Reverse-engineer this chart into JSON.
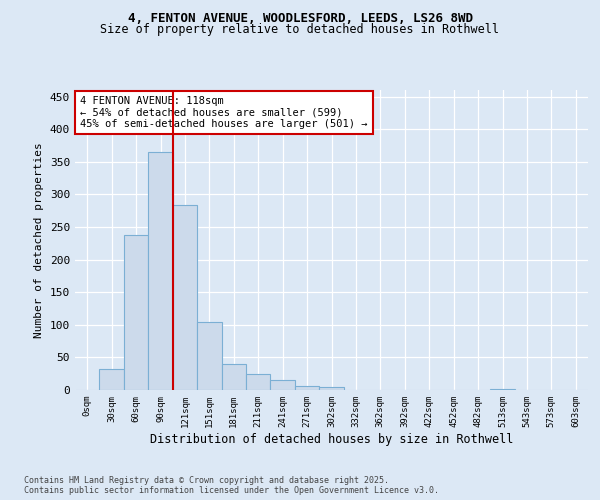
{
  "title1": "4, FENTON AVENUE, WOODLESFORD, LEEDS, LS26 8WD",
  "title2": "Size of property relative to detached houses in Rothwell",
  "xlabel": "Distribution of detached houses by size in Rothwell",
  "ylabel": "Number of detached properties",
  "footnote": "Contains HM Land Registry data © Crown copyright and database right 2025.\nContains public sector information licensed under the Open Government Licence v3.0.",
  "bin_labels": [
    "0sqm",
    "30sqm",
    "60sqm",
    "90sqm",
    "121sqm",
    "151sqm",
    "181sqm",
    "211sqm",
    "241sqm",
    "271sqm",
    "302sqm",
    "332sqm",
    "362sqm",
    "392sqm",
    "422sqm",
    "452sqm",
    "482sqm",
    "513sqm",
    "543sqm",
    "573sqm",
    "603sqm"
  ],
  "bar_values": [
    0,
    32,
    237,
    365,
    283,
    105,
    40,
    24,
    15,
    6,
    4,
    0,
    0,
    0,
    0,
    0,
    0,
    1,
    0,
    0,
    0
  ],
  "bar_color": "#ccdaeb",
  "bar_edge_color": "#7bafd4",
  "red_line_x": 3.5,
  "red_line_color": "#cc0000",
  "annotation_text": "4 FENTON AVENUE: 118sqm\n← 54% of detached houses are smaller (599)\n45% of semi-detached houses are larger (501) →",
  "annotation_box_color": "#ffffff",
  "annotation_box_edge_color": "#cc0000",
  "ylim": [
    0,
    460
  ],
  "yticks": [
    0,
    50,
    100,
    150,
    200,
    250,
    300,
    350,
    400,
    450
  ],
  "bg_color": "#dce8f5",
  "plot_bg_color": "#dce8f5",
  "title_fontsize": 9,
  "subtitle_fontsize": 8.5
}
